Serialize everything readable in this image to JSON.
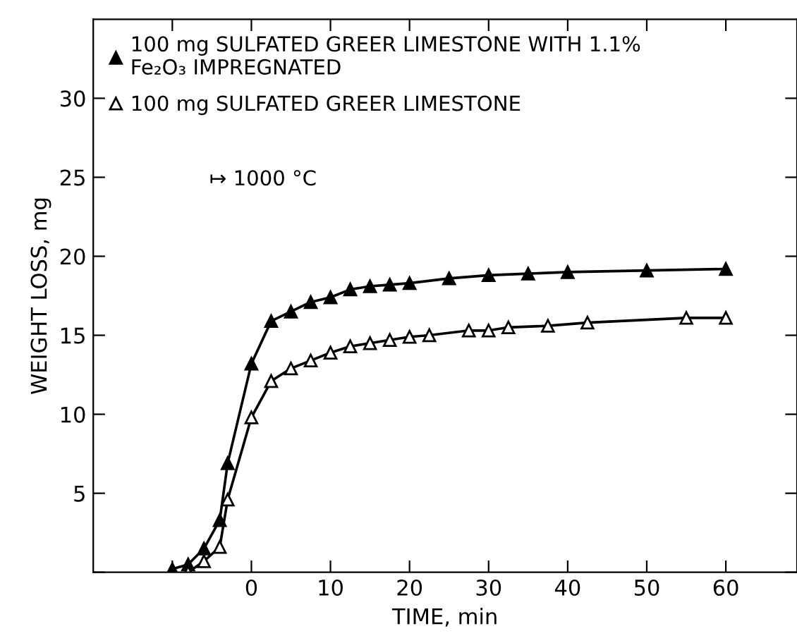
{
  "chart_data": {
    "type": "line",
    "xlabel": "TIME, min",
    "ylabel": "WEIGHT LOSS, mg",
    "xlim": [
      -20,
      69
    ],
    "ylim": [
      0,
      35
    ],
    "xticks": [
      {
        "value": -10,
        "label": null
      },
      0,
      10,
      20,
      30,
      40,
      50,
      60
    ],
    "yticks": [
      {
        "value": 0,
        "label": null
      },
      5,
      10,
      15,
      20,
      25,
      30
    ],
    "grid": false,
    "legend": "top left",
    "marker": "triangle",
    "line_style": "solid",
    "series": [
      {
        "name": "100 mg SULFATED GREER LIMESTONE WITH 1.1%\nFe₂O₃ IMPREGNATED",
        "color": "#000000",
        "x": [
          -10,
          -8,
          -6,
          -4,
          -3,
          0,
          2.5,
          5,
          7.5,
          10,
          12.5,
          15,
          17.5,
          20,
          25,
          30,
          35,
          40,
          50,
          60
        ],
        "values": [
          0.2,
          0.5,
          1.5,
          3.3,
          6.9,
          13.2,
          15.9,
          16.5,
          17.1,
          17.4,
          17.9,
          18.1,
          18.2,
          18.3,
          18.6,
          18.8,
          18.9,
          19.0,
          19.1,
          19.2
        ]
      },
      {
        "name": "100 mg SULFATED GREER LIMESTONE",
        "color": "#000000",
        "x": [
          -8,
          -6,
          -4,
          -3,
          0,
          2.5,
          5,
          7.5,
          10,
          12.5,
          15,
          17.5,
          20,
          22.5,
          27.5,
          30,
          32.5,
          37.5,
          42.5,
          55,
          60
        ],
        "values": [
          0,
          0.7,
          1.6,
          4.6,
          9.8,
          12.1,
          12.9,
          13.4,
          13.9,
          14.3,
          14.5,
          14.7,
          14.9,
          15.0,
          15.3,
          15.3,
          15.5,
          15.6,
          15.8,
          16.1,
          16.1
        ]
      }
    ],
    "annotations": [
      "↦ 1000 °C"
    ]
  }
}
